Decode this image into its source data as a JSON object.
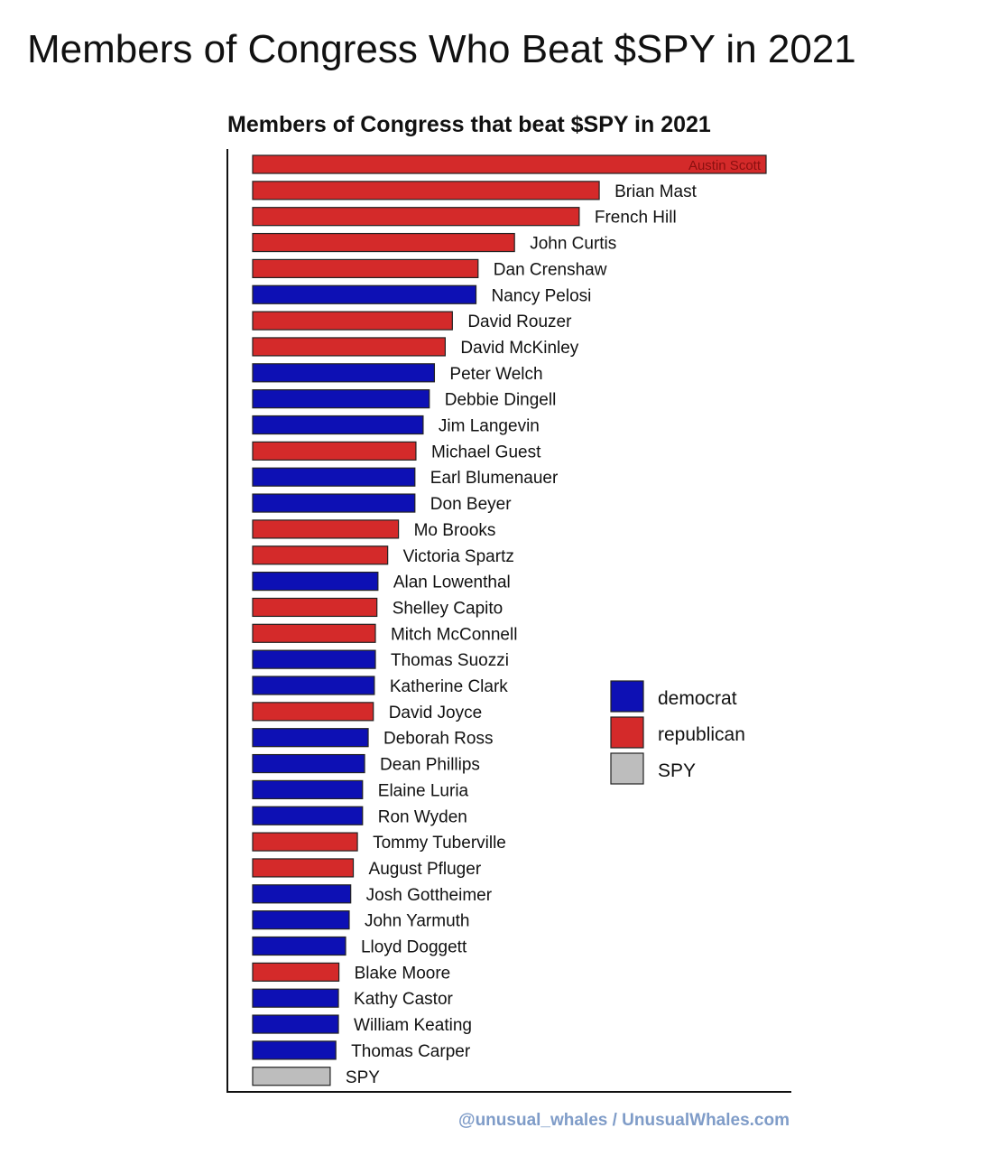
{
  "post": {
    "title": "Members of Congress Who Beat $SPY in 2021"
  },
  "chart_data": {
    "type": "bar",
    "orientation": "horizontal",
    "title": "Members of Congress that beat $SPY in 2021",
    "xlabel": "",
    "ylabel": "",
    "grid": false,
    "legend_position": "center-right",
    "colors": {
      "democrat": "#0d10b4",
      "republican": "#d42a2a",
      "SPY": "#bdbdbd"
    },
    "legend": [
      {
        "key": "democrat",
        "label": "democrat"
      },
      {
        "key": "republican",
        "label": "republican"
      },
      {
        "key": "SPY",
        "label": "SPY"
      }
    ],
    "bars": [
      {
        "name": "Austin Scott",
        "party": "republican",
        "value": 100
      },
      {
        "name": "Brian Mast",
        "party": "republican",
        "value": 67.5
      },
      {
        "name": "French Hill",
        "party": "republican",
        "value": 63.6
      },
      {
        "name": "John Curtis",
        "party": "republican",
        "value": 51
      },
      {
        "name": "Dan Crenshaw",
        "party": "republican",
        "value": 43.9
      },
      {
        "name": "Nancy Pelosi",
        "party": "democrat",
        "value": 43.5
      },
      {
        "name": "David Rouzer",
        "party": "republican",
        "value": 38.9
      },
      {
        "name": "David McKinley",
        "party": "republican",
        "value": 37.5
      },
      {
        "name": "Peter Welch",
        "party": "democrat",
        "value": 35.4
      },
      {
        "name": "Debbie Dingell",
        "party": "democrat",
        "value": 34.4
      },
      {
        "name": "Jim Langevin",
        "party": "democrat",
        "value": 33.2
      },
      {
        "name": "Michael Guest",
        "party": "republican",
        "value": 31.8
      },
      {
        "name": "Earl Blumenauer",
        "party": "democrat",
        "value": 31.6
      },
      {
        "name": "Don Beyer",
        "party": "democrat",
        "value": 31.6
      },
      {
        "name": "Mo Brooks",
        "party": "republican",
        "value": 28.4
      },
      {
        "name": "Victoria Spartz",
        "party": "republican",
        "value": 26.3
      },
      {
        "name": "Alan Lowenthal",
        "party": "democrat",
        "value": 24.4
      },
      {
        "name": "Shelley Capito",
        "party": "republican",
        "value": 24.2
      },
      {
        "name": "Mitch McConnell",
        "party": "republican",
        "value": 23.9
      },
      {
        "name": "Thomas Suozzi",
        "party": "democrat",
        "value": 23.9
      },
      {
        "name": "Katherine Clark",
        "party": "democrat",
        "value": 23.7
      },
      {
        "name": "David Joyce",
        "party": "republican",
        "value": 23.5
      },
      {
        "name": "Deborah Ross",
        "party": "democrat",
        "value": 22.5
      },
      {
        "name": "Dean Phillips",
        "party": "democrat",
        "value": 21.8
      },
      {
        "name": "Elaine Luria",
        "party": "democrat",
        "value": 21.4
      },
      {
        "name": "Ron Wyden",
        "party": "democrat",
        "value": 21.4
      },
      {
        "name": "Tommy Tuberville",
        "party": "republican",
        "value": 20.4
      },
      {
        "name": "August Pfluger",
        "party": "republican",
        "value": 19.6
      },
      {
        "name": "Josh Gottheimer",
        "party": "democrat",
        "value": 19.1
      },
      {
        "name": "John Yarmuth",
        "party": "democrat",
        "value": 18.8
      },
      {
        "name": "Lloyd Doggett",
        "party": "democrat",
        "value": 18.1
      },
      {
        "name": "Blake Moore",
        "party": "republican",
        "value": 16.8
      },
      {
        "name": "Kathy Castor",
        "party": "democrat",
        "value": 16.7
      },
      {
        "name": "William Keating",
        "party": "democrat",
        "value": 16.7
      },
      {
        "name": "Thomas Carper",
        "party": "democrat",
        "value": 16.2
      },
      {
        "name": "SPY",
        "party": "SPY",
        "value": 15.1
      }
    ],
    "credit": "@unusual_whales / UnusualWhales.com"
  }
}
